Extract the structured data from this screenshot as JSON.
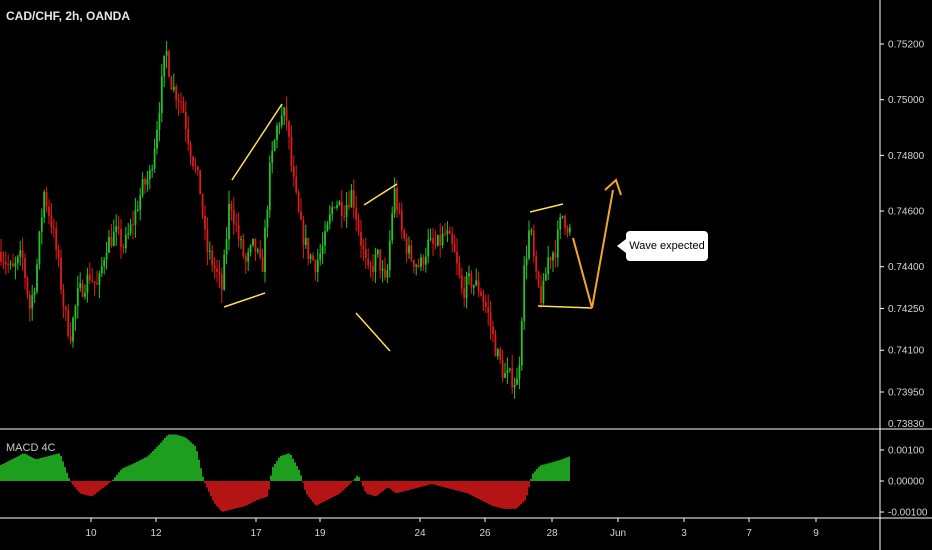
{
  "header": {
    "symbol_label": "CAD/CHF, 2h, OANDA"
  },
  "macd_panel": {
    "label": "MACD 4C"
  },
  "annotation": {
    "text": "Wave expected"
  },
  "colors": {
    "up": "#26c526",
    "down": "#e11a1a",
    "pattern": "#ffe14d",
    "projection": "#f5a623",
    "axis": "#ffffff"
  },
  "chart_data": [
    {
      "type": "candlestick",
      "title": "CAD/CHF, 2h, OANDA",
      "x_ticks": [
        "10",
        "12",
        "17",
        "19",
        "24",
        "26",
        "28",
        "Jun",
        "3",
        "7",
        "9"
      ],
      "y_ticks": [
        0.7395,
        0.741,
        0.7425,
        0.744,
        0.746,
        0.748,
        0.75,
        0.752
      ],
      "y_tick_labels": [
        "0.73950",
        "0.74100",
        "0.74250",
        "0.74400",
        "0.74600",
        "0.74800",
        "0.75000",
        "0.75200"
      ],
      "last_axis_label": "0.73830",
      "ylim": [
        0.7383,
        0.7528
      ],
      "price_path": [
        [
          0,
          0.7446
        ],
        [
          12,
          0.7438
        ],
        [
          22,
          0.7444
        ],
        [
          30,
          0.7425
        ],
        [
          36,
          0.7437
        ],
        [
          44,
          0.7467
        ],
        [
          52,
          0.7455
        ],
        [
          58,
          0.7442
        ],
        [
          64,
          0.7425
        ],
        [
          70,
          0.7415
        ],
        [
          78,
          0.743
        ],
        [
          90,
          0.7437
        ],
        [
          98,
          0.7432
        ],
        [
          106,
          0.7448
        ],
        [
          116,
          0.7452
        ],
        [
          124,
          0.7447
        ],
        [
          132,
          0.7455
        ],
        [
          142,
          0.7468
        ],
        [
          150,
          0.7473
        ],
        [
          156,
          0.7488
        ],
        [
          166,
          0.7518
        ],
        [
          172,
          0.7505
        ],
        [
          182,
          0.7499
        ],
        [
          190,
          0.7483
        ],
        [
          200,
          0.7468
        ],
        [
          206,
          0.7447
        ],
        [
          214,
          0.744
        ],
        [
          222,
          0.7432
        ],
        [
          230,
          0.7465
        ],
        [
          238,
          0.7451
        ],
        [
          246,
          0.7441
        ],
        [
          254,
          0.7448
        ],
        [
          262,
          0.7438
        ],
        [
          270,
          0.7475
        ],
        [
          278,
          0.7492
        ],
        [
          286,
          0.7495
        ],
        [
          292,
          0.7474
        ],
        [
          300,
          0.7455
        ],
        [
          308,
          0.7445
        ],
        [
          316,
          0.7441
        ],
        [
          324,
          0.7448
        ],
        [
          334,
          0.7464
        ],
        [
          344,
          0.7461
        ],
        [
          352,
          0.7467
        ],
        [
          360,
          0.7451
        ],
        [
          368,
          0.7437
        ],
        [
          378,
          0.7444
        ],
        [
          386,
          0.7432
        ],
        [
          394,
          0.7468
        ],
        [
          402,
          0.7452
        ],
        [
          410,
          0.7444
        ],
        [
          420,
          0.744
        ],
        [
          428,
          0.7448
        ],
        [
          436,
          0.7447
        ],
        [
          446,
          0.7452
        ],
        [
          454,
          0.7445
        ],
        [
          462,
          0.7431
        ],
        [
          470,
          0.7435
        ],
        [
          480,
          0.7432
        ],
        [
          488,
          0.7423
        ],
        [
          496,
          0.741
        ],
        [
          504,
          0.7401
        ],
        [
          512,
          0.74
        ],
        [
          518,
          0.7398
        ],
        [
          524,
          0.7438
        ],
        [
          530,
          0.7455
        ],
        [
          536,
          0.7435
        ],
        [
          542,
          0.7428
        ],
        [
          548,
          0.7443
        ],
        [
          556,
          0.7447
        ],
        [
          562,
          0.7459
        ],
        [
          570,
          0.7453
        ]
      ]
    },
    {
      "type": "bar",
      "title": "MACD 4C",
      "y_ticks": [
        0.001,
        0,
        -0.001
      ],
      "y_tick_labels": [
        "0.00100",
        "0.00000",
        "-0.00100"
      ],
      "ylim": [
        -0.0012,
        0.0015
      ],
      "histogram_path": [
        [
          0,
          0.0005
        ],
        [
          12,
          0.0007
        ],
        [
          24,
          0.0009
        ],
        [
          36,
          0.0007
        ],
        [
          48,
          0.0008
        ],
        [
          60,
          0.0009
        ],
        [
          70,
          0.0
        ],
        [
          80,
          -0.0004
        ],
        [
          92,
          -0.0005
        ],
        [
          104,
          -0.0002
        ],
        [
          112,
          0.0
        ],
        [
          122,
          0.0004
        ],
        [
          136,
          0.0006
        ],
        [
          148,
          0.0008
        ],
        [
          160,
          0.0012
        ],
        [
          168,
          0.0015
        ],
        [
          176,
          0.0015
        ],
        [
          186,
          0.0014
        ],
        [
          196,
          0.0011
        ],
        [
          204,
          0.0
        ],
        [
          214,
          -0.0007
        ],
        [
          222,
          -0.001
        ],
        [
          234,
          -0.0009
        ],
        [
          246,
          -0.0008
        ],
        [
          258,
          -0.0006
        ],
        [
          268,
          -0.0005
        ],
        [
          272,
          0.0004
        ],
        [
          280,
          0.0008
        ],
        [
          290,
          0.0009
        ],
        [
          300,
          0.0003
        ],
        [
          306,
          -0.0004
        ],
        [
          316,
          -0.0008
        ],
        [
          328,
          -0.0006
        ],
        [
          340,
          -0.0004
        ],
        [
          350,
          -0.0001
        ],
        [
          358,
          0.0002
        ],
        [
          366,
          -0.0004
        ],
        [
          376,
          -0.0005
        ],
        [
          388,
          -0.0002
        ],
        [
          396,
          -0.0004
        ],
        [
          408,
          -0.0003
        ],
        [
          420,
          -0.0002
        ],
        [
          432,
          -0.0001
        ],
        [
          444,
          -0.0002
        ],
        [
          456,
          -0.0003
        ],
        [
          468,
          -0.0004
        ],
        [
          480,
          -0.0006
        ],
        [
          492,
          -0.0008
        ],
        [
          504,
          -0.0009
        ],
        [
          516,
          -0.0009
        ],
        [
          526,
          -0.0006
        ],
        [
          532,
          0.0002
        ],
        [
          540,
          0.0005
        ],
        [
          552,
          0.0006
        ],
        [
          562,
          0.0007
        ],
        [
          570,
          0.0008
        ]
      ]
    }
  ]
}
